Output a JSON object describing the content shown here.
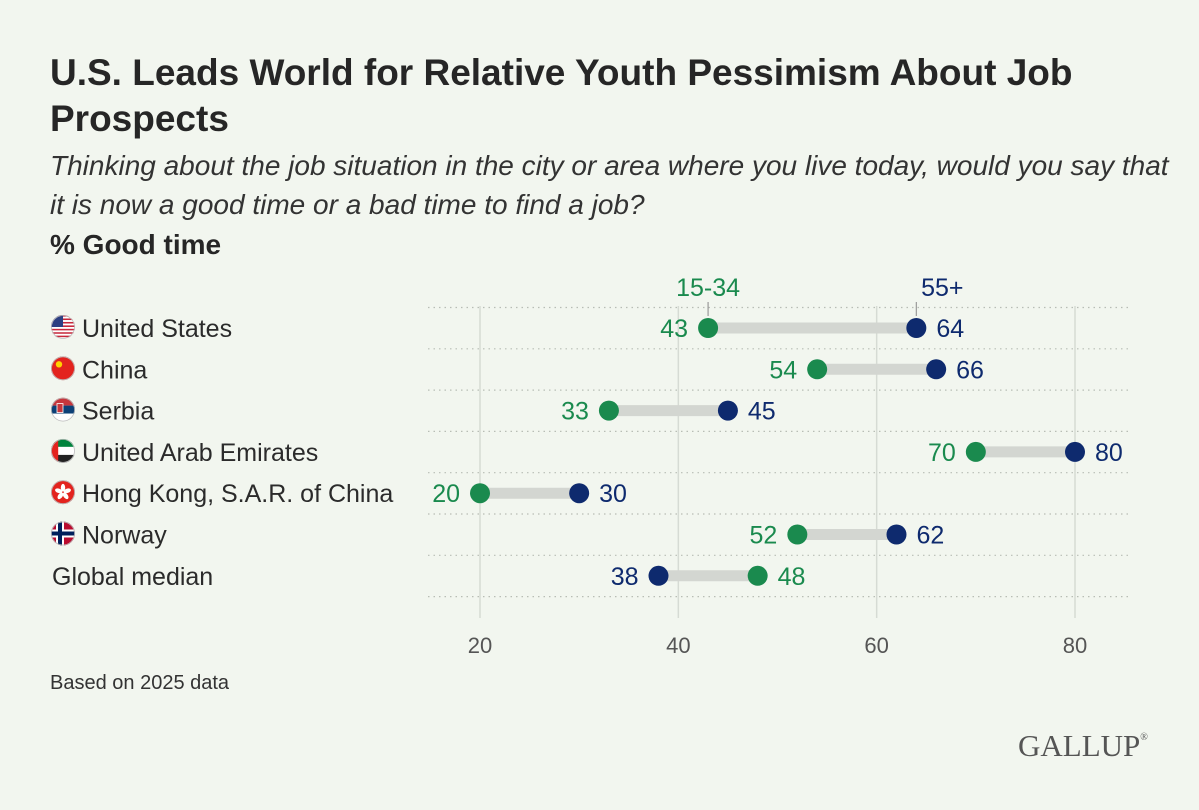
{
  "chart_data": {
    "type": "dot-range",
    "title": "U.S. Leads World for Relative Youth Pessimism About Job Prospects",
    "subtitle": "Thinking about the job situation in the city or area where you live today, would you say that it is now a good time or a bad time to find a job?",
    "measure": "% Good time",
    "series": [
      {
        "name": "15-34",
        "color": "#1a8a4e"
      },
      {
        "name": "55+",
        "color": "#0e2a6e"
      }
    ],
    "categories": [
      {
        "label": "United States",
        "flag": "us-flag-icon",
        "young": 43,
        "old": 64
      },
      {
        "label": "China",
        "flag": "china-flag-icon",
        "young": 54,
        "old": 66
      },
      {
        "label": "Serbia",
        "flag": "serbia-flag-icon",
        "young": 33,
        "old": 45
      },
      {
        "label": "United Arab Emirates",
        "flag": "uae-flag-icon",
        "young": 70,
        "old": 80
      },
      {
        "label": "Hong Kong, S.A.R. of China",
        "flag": "hong-kong-flag-icon",
        "young": 20,
        "old": 30
      },
      {
        "label": "Norway",
        "flag": "norway-flag-icon",
        "young": 52,
        "old": 62
      },
      {
        "label": "Global median",
        "flag": "",
        "young": 48,
        "old": 38
      }
    ],
    "xticks": [
      20,
      40,
      60,
      80
    ],
    "xlim": [
      15,
      85
    ],
    "grid": true,
    "legend": "inline-labels-above-first-row"
  },
  "footnote": "Based on 2025 data",
  "logo": "GALLUP"
}
